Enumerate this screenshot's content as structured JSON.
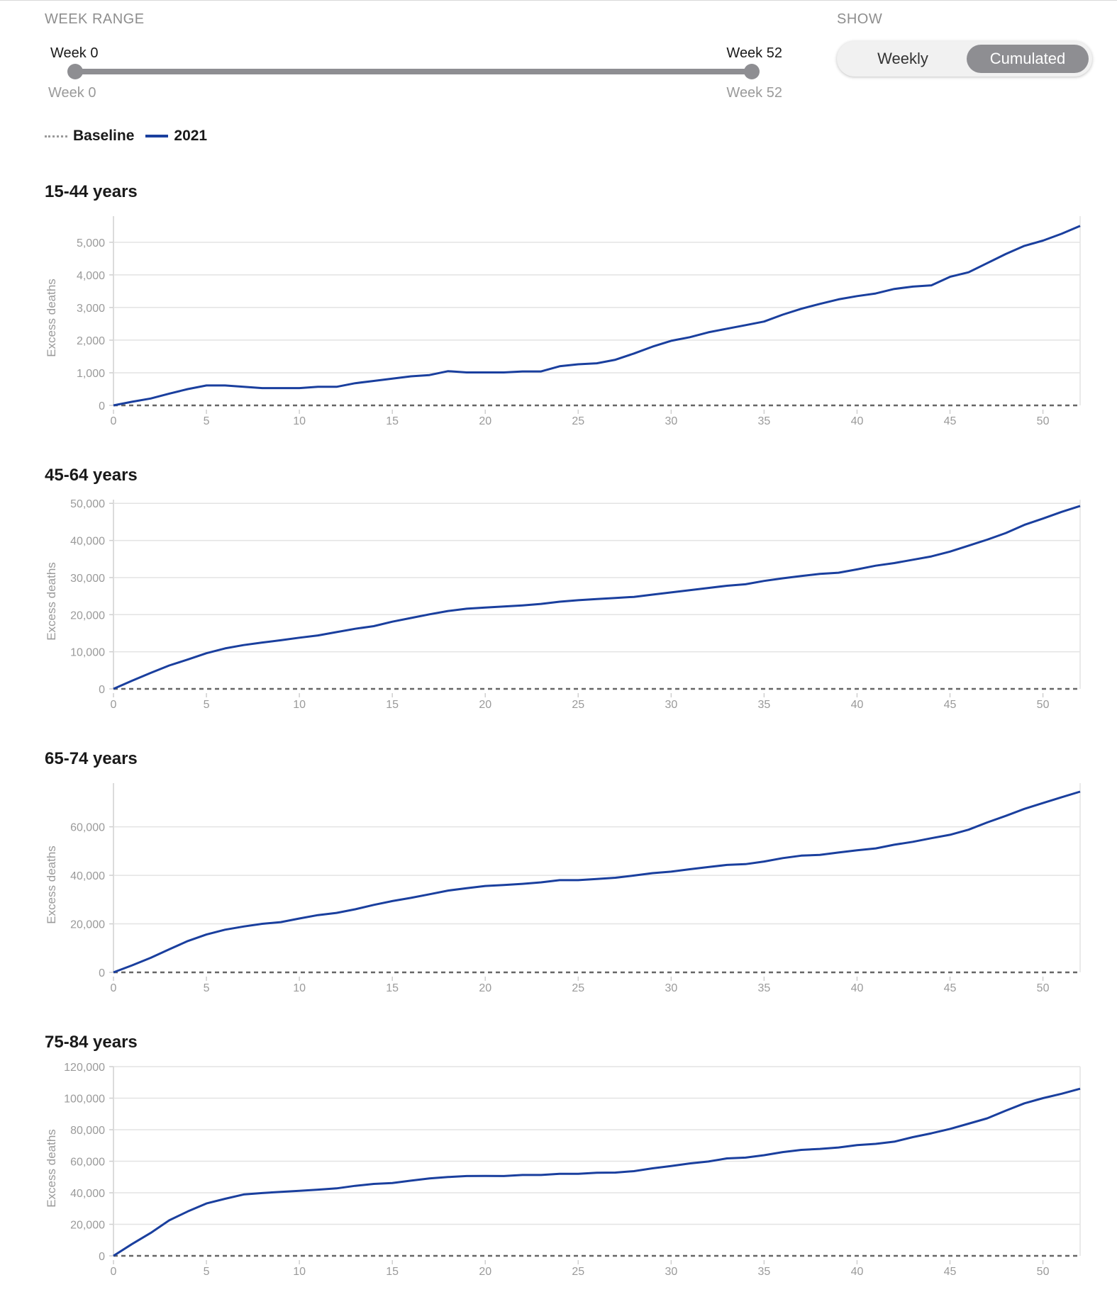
{
  "controls": {
    "week_range": {
      "title": "WEEK RANGE",
      "start_label": "Week 0",
      "end_label": "Week 52",
      "min_label": "Week 0",
      "max_label": "Week 52",
      "start": 0,
      "end": 52
    },
    "show": {
      "title": "SHOW",
      "options": [
        "Weekly",
        "Cumulated"
      ],
      "selected": "Cumulated"
    }
  },
  "legend": {
    "baseline": "Baseline",
    "series": "2021"
  },
  "colors": {
    "series": "#1a3f9e",
    "baseline": "#666666",
    "grid": "#e3e3e3",
    "axis_text": "#9a9a9a"
  },
  "chart_data": [
    {
      "type": "line",
      "title": "15-44 years",
      "ylabel": "Excess deaths",
      "xlabel": "",
      "xlim": [
        0,
        52
      ],
      "ylim": [
        0,
        5800
      ],
      "yticks": [
        0,
        1000,
        2000,
        3000,
        4000,
        5000
      ],
      "xticks": [
        0,
        5,
        10,
        15,
        20,
        25,
        30,
        35,
        40,
        45,
        50
      ],
      "grid": true,
      "series": [
        {
          "name": "Baseline",
          "style": "dotted",
          "values": [
            0,
            0
          ],
          "x": [
            0,
            52
          ]
        },
        {
          "name": "2021",
          "x": [
            0,
            1,
            2,
            3,
            4,
            5,
            6,
            7,
            8,
            9,
            10,
            11,
            12,
            13,
            14,
            15,
            16,
            17,
            18,
            19,
            20,
            21,
            22,
            23,
            24,
            25,
            26,
            27,
            28,
            29,
            30,
            31,
            32,
            33,
            34,
            35,
            36,
            37,
            38,
            39,
            40,
            41,
            42,
            43,
            44,
            45,
            46,
            47,
            48,
            49,
            50,
            51,
            52
          ],
          "values": [
            0,
            110,
            210,
            360,
            500,
            610,
            610,
            570,
            530,
            530,
            530,
            570,
            570,
            680,
            750,
            820,
            890,
            930,
            1050,
            1010,
            1010,
            1010,
            1040,
            1040,
            1200,
            1260,
            1290,
            1400,
            1590,
            1800,
            1980,
            2090,
            2240,
            2350,
            2460,
            2570,
            2780,
            2960,
            3110,
            3250,
            3350,
            3430,
            3570,
            3640,
            3680,
            3940,
            4080,
            4360,
            4640,
            4890,
            5050,
            5260,
            5500
          ]
        }
      ]
    },
    {
      "type": "line",
      "title": "45-64 years",
      "ylabel": "Excess deaths",
      "xlabel": "",
      "xlim": [
        0,
        52
      ],
      "ylim": [
        0,
        51000
      ],
      "yticks": [
        0,
        10000,
        20000,
        30000,
        40000,
        50000
      ],
      "xticks": [
        0,
        5,
        10,
        15,
        20,
        25,
        30,
        35,
        40,
        45,
        50
      ],
      "grid": true,
      "series": [
        {
          "name": "Baseline",
          "style": "dotted",
          "values": [
            0,
            0
          ],
          "x": [
            0,
            52
          ]
        },
        {
          "name": "2021",
          "x": [
            0,
            1,
            2,
            3,
            4,
            5,
            6,
            7,
            8,
            9,
            10,
            11,
            12,
            13,
            14,
            15,
            16,
            17,
            18,
            19,
            20,
            21,
            22,
            23,
            24,
            25,
            26,
            27,
            28,
            29,
            30,
            31,
            32,
            33,
            34,
            35,
            36,
            37,
            38,
            39,
            40,
            41,
            42,
            43,
            44,
            45,
            46,
            47,
            48,
            49,
            50,
            51,
            52
          ],
          "values": [
            0,
            2200,
            4300,
            6300,
            7900,
            9600,
            10900,
            11800,
            12500,
            13100,
            13800,
            14400,
            15300,
            16200,
            16900,
            18100,
            19100,
            20100,
            21000,
            21600,
            21900,
            22200,
            22500,
            22900,
            23500,
            23900,
            24200,
            24500,
            24800,
            25400,
            26000,
            26600,
            27200,
            27800,
            28200,
            29100,
            29800,
            30400,
            31000,
            31300,
            32200,
            33200,
            33900,
            34800,
            35700,
            37000,
            38600,
            40200,
            42000,
            44200,
            45900,
            47700,
            49300
          ]
        }
      ]
    },
    {
      "type": "line",
      "title": "65-74 years",
      "ylabel": "Excess deaths",
      "xlabel": "",
      "xlim": [
        0,
        52
      ],
      "ylim": [
        0,
        78000
      ],
      "yticks": [
        0,
        20000,
        40000,
        60000
      ],
      "xticks": [
        0,
        5,
        10,
        15,
        20,
        25,
        30,
        35,
        40,
        45,
        50
      ],
      "grid": true,
      "series": [
        {
          "name": "Baseline",
          "style": "dotted",
          "values": [
            0,
            0
          ],
          "x": [
            0,
            52
          ]
        },
        {
          "name": "2021",
          "x": [
            0,
            1,
            2,
            3,
            4,
            5,
            6,
            7,
            8,
            9,
            10,
            11,
            12,
            13,
            14,
            15,
            16,
            17,
            18,
            19,
            20,
            21,
            22,
            23,
            24,
            25,
            26,
            27,
            28,
            29,
            30,
            31,
            32,
            33,
            34,
            35,
            36,
            37,
            38,
            39,
            40,
            41,
            42,
            43,
            44,
            45,
            46,
            47,
            48,
            49,
            50,
            51,
            52
          ],
          "values": [
            0,
            2900,
            6000,
            9500,
            12900,
            15600,
            17600,
            18900,
            20000,
            20700,
            22200,
            23600,
            24500,
            26000,
            27800,
            29400,
            30700,
            32200,
            33700,
            34700,
            35600,
            36000,
            36500,
            37100,
            38000,
            38000,
            38500,
            39000,
            39900,
            40900,
            41500,
            42500,
            43400,
            44300,
            44600,
            45700,
            47100,
            48100,
            48400,
            49400,
            50300,
            51100,
            52600,
            53800,
            55300,
            56700,
            58800,
            61800,
            64500,
            67400,
            69800,
            72200,
            74500
          ]
        }
      ]
    },
    {
      "type": "line",
      "title": "75-84 years",
      "ylabel": "Excess deaths",
      "xlabel": "",
      "xlim": [
        0,
        52
      ],
      "ylim": [
        0,
        120000
      ],
      "yticks": [
        0,
        20000,
        40000,
        60000,
        80000,
        100000,
        120000
      ],
      "xticks": [
        0,
        5,
        10,
        15,
        20,
        25,
        30,
        35,
        40,
        45,
        50
      ],
      "grid": true,
      "series": [
        {
          "name": "Baseline",
          "style": "dotted",
          "values": [
            0,
            0
          ],
          "x": [
            0,
            52
          ]
        },
        {
          "name": "2021",
          "x": [
            0,
            1,
            2,
            3,
            4,
            5,
            6,
            7,
            8,
            9,
            10,
            11,
            12,
            13,
            14,
            15,
            16,
            17,
            18,
            19,
            20,
            21,
            22,
            23,
            24,
            25,
            26,
            27,
            28,
            29,
            30,
            31,
            32,
            33,
            34,
            35,
            36,
            37,
            38,
            39,
            40,
            41,
            42,
            43,
            44,
            45,
            46,
            47,
            48,
            49,
            50,
            51,
            52
          ],
          "values": [
            0,
            7500,
            14500,
            22500,
            28200,
            33200,
            36200,
            38900,
            39800,
            40600,
            41200,
            42000,
            42800,
            44400,
            45600,
            46200,
            47700,
            49100,
            50000,
            50600,
            50700,
            50600,
            51300,
            51300,
            52000,
            52000,
            52700,
            52800,
            53700,
            55500,
            57000,
            58600,
            59800,
            61800,
            62300,
            63800,
            65800,
            67200,
            67800,
            68700,
            70200,
            71000,
            72400,
            75300,
            77700,
            80500,
            83800,
            87200,
            92100,
            96700,
            100000,
            102800,
            106000
          ]
        }
      ]
    }
  ]
}
